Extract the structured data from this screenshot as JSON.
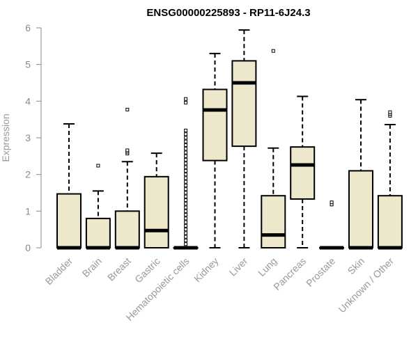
{
  "chart_data": {
    "type": "boxplot",
    "title": "ENSG00000225893 - RP11-6J24.3",
    "xlabel": "",
    "ylabel": "Expression",
    "ylim": [
      0,
      6
    ],
    "yticks": [
      0,
      1,
      2,
      3,
      4,
      5,
      6
    ],
    "box_color": "#ede7cc",
    "categories": [
      "Bladder",
      "Brain",
      "Breast",
      "Gastric",
      "Hematopoietic cells",
      "Kidney",
      "Liver",
      "Lung",
      "Pancreas",
      "Prostate",
      "Skin",
      "Unknown / Other"
    ],
    "series": [
      {
        "name": "Bladder",
        "whisker_low": 0,
        "q1": 0,
        "median": 0,
        "q3": 1.47,
        "whisker_high": 3.38,
        "outliers": []
      },
      {
        "name": "Brain",
        "whisker_low": 0,
        "q1": 0,
        "median": 0,
        "q3": 0.8,
        "whisker_high": 1.55,
        "outliers": [
          2.24
        ]
      },
      {
        "name": "Breast",
        "whisker_low": 0,
        "q1": 0,
        "median": 0,
        "q3": 1.0,
        "whisker_high": 2.35,
        "outliers": [
          2.57,
          2.62,
          2.66,
          3.77
        ]
      },
      {
        "name": "Gastric",
        "whisker_low": 0,
        "q1": 0,
        "median": 0.47,
        "q3": 1.94,
        "whisker_high": 2.58,
        "outliers": []
      },
      {
        "name": "Hematopoietic cells",
        "whisker_low": 0,
        "q1": 0,
        "median": 0,
        "q3": 0,
        "whisker_high": 0,
        "outliers": [
          0.1,
          0.2,
          0.3,
          0.4,
          0.5,
          0.6,
          0.7,
          0.8,
          0.9,
          1.0,
          1.1,
          1.2,
          1.3,
          1.4,
          1.5,
          1.6,
          1.7,
          1.8,
          1.9,
          2.0,
          2.1,
          2.2,
          2.3,
          2.4,
          2.5,
          2.6,
          2.7,
          2.8,
          2.9,
          3.0,
          3.1,
          3.2,
          3.96,
          4.06
        ]
      },
      {
        "name": "Kidney",
        "whisker_low": 0,
        "q1": 2.38,
        "median": 3.76,
        "q3": 4.32,
        "whisker_high": 5.3,
        "outliers": []
      },
      {
        "name": "Liver",
        "whisker_low": 0,
        "q1": 2.77,
        "median": 4.5,
        "q3": 5.1,
        "whisker_high": 5.94,
        "outliers": []
      },
      {
        "name": "Lung",
        "whisker_low": 0,
        "q1": 0,
        "median": 0.35,
        "q3": 1.42,
        "whisker_high": 2.72,
        "outliers": [
          5.37
        ]
      },
      {
        "name": "Pancreas",
        "whisker_low": 0,
        "q1": 1.33,
        "median": 2.26,
        "q3": 2.75,
        "whisker_high": 4.13,
        "outliers": []
      },
      {
        "name": "Prostate",
        "whisker_low": 0,
        "q1": 0,
        "median": 0,
        "q3": 0,
        "whisker_high": 0,
        "outliers": [
          1.18,
          1.24
        ]
      },
      {
        "name": "Skin",
        "whisker_low": 0,
        "q1": 0,
        "median": 0,
        "q3": 2.1,
        "whisker_high": 4.04,
        "outliers": []
      },
      {
        "name": "Unknown / Other",
        "whisker_low": 0,
        "q1": 0,
        "median": 0,
        "q3": 1.42,
        "whisker_high": 3.36,
        "outliers": [
          3.6,
          3.65,
          3.7
        ]
      }
    ]
  }
}
